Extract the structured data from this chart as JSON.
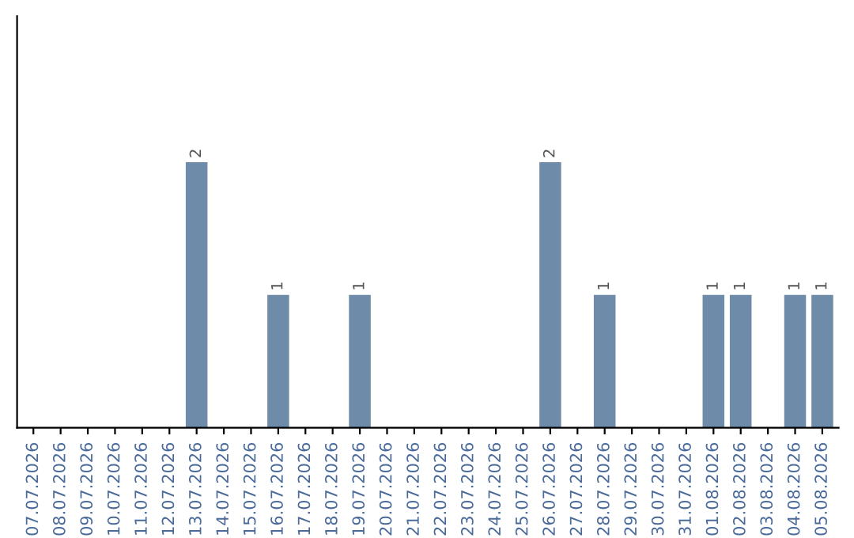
{
  "chart_data": {
    "type": "bar",
    "categories": [
      "07.07.2026",
      "08.07.2026",
      "09.07.2026",
      "10.07.2026",
      "11.07.2026",
      "12.07.2026",
      "13.07.2026",
      "14.07.2026",
      "15.07.2026",
      "16.07.2026",
      "17.07.2026",
      "18.07.2026",
      "19.07.2026",
      "20.07.2026",
      "21.07.2026",
      "22.07.2026",
      "23.07.2026",
      "24.07.2026",
      "25.07.2026",
      "26.07.2026",
      "27.07.2026",
      "28.07.2026",
      "29.07.2026",
      "30.07.2026",
      "31.07.2026",
      "01.08.2026",
      "02.08.2026",
      "03.08.2026",
      "04.08.2026",
      "05.08.2026"
    ],
    "values": [
      0,
      0,
      0,
      0,
      0,
      0,
      2,
      0,
      0,
      1,
      0,
      0,
      1,
      0,
      0,
      0,
      0,
      0,
      0,
      2,
      0,
      1,
      0,
      0,
      0,
      1,
      1,
      0,
      1,
      1
    ],
    "value_labels": [
      null,
      null,
      null,
      null,
      null,
      null,
      "2",
      null,
      null,
      "1",
      null,
      null,
      "1",
      null,
      null,
      null,
      null,
      null,
      null,
      "2",
      null,
      "1",
      null,
      null,
      null,
      "1",
      "1",
      null,
      "1",
      "1"
    ],
    "color": "#6e8caa",
    "ylim": [
      0,
      3.1
    ],
    "tick_labels": "x",
    "grid": false,
    "legend": false
  }
}
